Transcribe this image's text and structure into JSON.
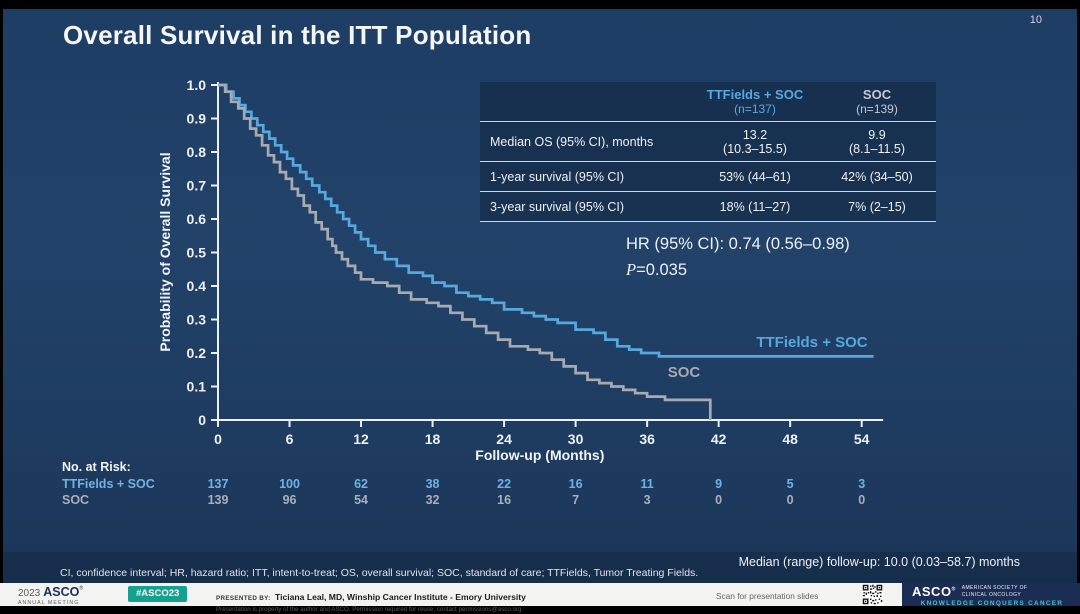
{
  "slide": {
    "title": "Overall Survival in the ITT Population",
    "page_number": "10"
  },
  "results_table": {
    "columns": [
      {
        "name": "TTFields + SOC",
        "n": "(n=137)"
      },
      {
        "name": "SOC",
        "n": "(n=139)"
      }
    ],
    "rows": [
      {
        "label": "Median OS (95% CI), months",
        "v1": "13.2",
        "v1b": "(10.3–15.5)",
        "v2": "9.9",
        "v2b": "(8.1–11.5)"
      },
      {
        "label": "1-year survival (95% CI)",
        "v1": "53% (44–61)",
        "v2": "42% (34–50)"
      },
      {
        "label": "3-year survival (95% CI)",
        "v1": "18% (11–27)",
        "v2": "7% (2–15)"
      }
    ]
  },
  "hr_annotation": {
    "line1": "HR (95% CI): 0.74 (0.56–0.98)",
    "p_label": "P",
    "p_value": "=0.035"
  },
  "chart_data": {
    "type": "line",
    "subtype": "kaplan-meier-step",
    "title": "Overall Survival in the ITT Population",
    "xlabel": "Follow-up (Months)",
    "ylabel": "Probability of Overall Survival",
    "xlim": [
      0,
      57
    ],
    "ylim": [
      0,
      1.0
    ],
    "xticks": [
      0,
      6,
      12,
      18,
      24,
      30,
      36,
      42,
      48,
      54
    ],
    "yticks": [
      0,
      0.1,
      0.2,
      0.3,
      0.4,
      0.5,
      0.6,
      0.7,
      0.8,
      0.9,
      1.0
    ],
    "grid": false,
    "series": [
      {
        "name": "TTFields + SOC",
        "color": "#57a8de",
        "median_os_months": 13.2,
        "one_year_survival": 0.53,
        "three_year_survival": 0.18,
        "points": [
          [
            0,
            1.0
          ],
          [
            0.7,
            0.98
          ],
          [
            1.3,
            0.96
          ],
          [
            1.8,
            0.94
          ],
          [
            2.3,
            0.92
          ],
          [
            2.8,
            0.9
          ],
          [
            3.3,
            0.88
          ],
          [
            3.8,
            0.86
          ],
          [
            4.3,
            0.84
          ],
          [
            4.8,
            0.82
          ],
          [
            5.3,
            0.8
          ],
          [
            5.8,
            0.78
          ],
          [
            6.3,
            0.76
          ],
          [
            6.9,
            0.74
          ],
          [
            7.4,
            0.72
          ],
          [
            7.9,
            0.7
          ],
          [
            8.5,
            0.68
          ],
          [
            9.0,
            0.66
          ],
          [
            9.5,
            0.64
          ],
          [
            10.0,
            0.62
          ],
          [
            10.5,
            0.6
          ],
          [
            11.0,
            0.58
          ],
          [
            11.5,
            0.56
          ],
          [
            12.0,
            0.54
          ],
          [
            12.6,
            0.52
          ],
          [
            13.2,
            0.5
          ],
          [
            14.0,
            0.48
          ],
          [
            15.0,
            0.46
          ],
          [
            16.0,
            0.44
          ],
          [
            17.2,
            0.43
          ],
          [
            18.0,
            0.41
          ],
          [
            19.0,
            0.4
          ],
          [
            20.0,
            0.38
          ],
          [
            21.0,
            0.37
          ],
          [
            22.0,
            0.36
          ],
          [
            23.0,
            0.35
          ],
          [
            24.0,
            0.33
          ],
          [
            25.5,
            0.32
          ],
          [
            26.5,
            0.31
          ],
          [
            27.5,
            0.3
          ],
          [
            28.5,
            0.29
          ],
          [
            30.0,
            0.27
          ],
          [
            31.5,
            0.26
          ],
          [
            32.5,
            0.24
          ],
          [
            33.5,
            0.22
          ],
          [
            34.5,
            0.21
          ],
          [
            35.5,
            0.2
          ],
          [
            37.0,
            0.19
          ],
          [
            55.0,
            0.19
          ]
        ]
      },
      {
        "name": "SOC",
        "color": "#a6abb2",
        "median_os_months": 9.9,
        "one_year_survival": 0.42,
        "three_year_survival": 0.07,
        "points": [
          [
            0,
            1.0
          ],
          [
            0.6,
            0.98
          ],
          [
            1.1,
            0.95
          ],
          [
            1.7,
            0.93
          ],
          [
            2.2,
            0.9
          ],
          [
            2.7,
            0.87
          ],
          [
            3.2,
            0.85
          ],
          [
            3.7,
            0.82
          ],
          [
            4.2,
            0.79
          ],
          [
            4.7,
            0.77
          ],
          [
            5.2,
            0.74
          ],
          [
            5.7,
            0.72
          ],
          [
            6.2,
            0.69
          ],
          [
            6.7,
            0.67
          ],
          [
            7.2,
            0.64
          ],
          [
            7.7,
            0.62
          ],
          [
            8.2,
            0.59
          ],
          [
            8.7,
            0.57
          ],
          [
            9.2,
            0.54
          ],
          [
            9.6,
            0.52
          ],
          [
            9.9,
            0.5
          ],
          [
            10.4,
            0.48
          ],
          [
            10.9,
            0.46
          ],
          [
            11.5,
            0.44
          ],
          [
            12.0,
            0.42
          ],
          [
            13.0,
            0.41
          ],
          [
            14.2,
            0.4
          ],
          [
            15.2,
            0.38
          ],
          [
            16.2,
            0.36
          ],
          [
            17.5,
            0.35
          ],
          [
            18.5,
            0.34
          ],
          [
            19.5,
            0.32
          ],
          [
            20.5,
            0.3
          ],
          [
            21.5,
            0.28
          ],
          [
            22.5,
            0.26
          ],
          [
            23.5,
            0.24
          ],
          [
            24.5,
            0.22
          ],
          [
            26.0,
            0.21
          ],
          [
            27.0,
            0.2
          ],
          [
            28.0,
            0.18
          ],
          [
            29.0,
            0.16
          ],
          [
            30.0,
            0.14
          ],
          [
            31.0,
            0.12
          ],
          [
            32.0,
            0.11
          ],
          [
            33.0,
            0.1
          ],
          [
            34.0,
            0.09
          ],
          [
            35.0,
            0.08
          ],
          [
            36.0,
            0.07
          ],
          [
            37.5,
            0.06
          ],
          [
            41.3,
            0.06
          ],
          [
            41.3,
            0.0
          ]
        ]
      }
    ]
  },
  "risk_table": {
    "heading": "No. at Risk:",
    "times": [
      0,
      6,
      12,
      18,
      24,
      30,
      36,
      42,
      48,
      54
    ],
    "rows": [
      {
        "name": "TTFields + SOC",
        "color": "#6fb3e4",
        "values": [
          137,
          100,
          62,
          38,
          22,
          16,
          11,
          9,
          5,
          3
        ]
      },
      {
        "name": "SOC",
        "color": "#aab0b8",
        "values": [
          139,
          96,
          54,
          32,
          16,
          7,
          3,
          0,
          0,
          0
        ]
      }
    ]
  },
  "footnote": "CI, confidence interval; HR, hazard ratio; ITT, intent-to-treat; OS, overall survival; SOC, standard of care; TTFields, Tumor Treating Fields.",
  "median_followup": "Median (range) follow-up: 10.0 (0.03–58.7) months",
  "footer": {
    "year": "2023",
    "asco_wordmark": "ASCO",
    "reg": "®",
    "annual_meeting": "ANNUAL MEETING",
    "hashtag": "#ASCO23",
    "presented_by_label": "PRESENTED BY:",
    "presenter": "Ticiana Leal, MD, Winship Cancer Institute - Emory University",
    "permission": "Presentation is property of the author and ASCO. Permission required for reuse; contact permissions@asco.org.",
    "scan_text": "Scan for presentation slides",
    "asco_logo": "ASCO",
    "society_line1": "AMERICAN SOCIETY OF",
    "society_line2": "CLINICAL ONCOLOGY",
    "tagline": "KNOWLEDGE CONQUERS CANCER"
  }
}
